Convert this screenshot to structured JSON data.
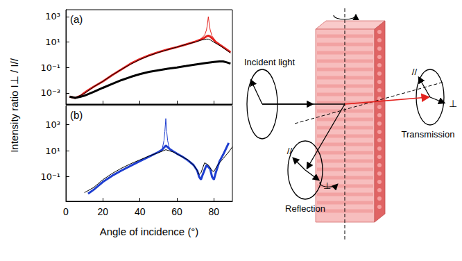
{
  "chart_data": {
    "type": "line",
    "xlabel": "Angle of incidence (°)",
    "ylabel": "Intensity ratio I⊥ / I//",
    "log": "y",
    "grid": false,
    "xlim": [
      0,
      90
    ],
    "xticks": [
      0,
      20,
      40,
      60,
      80
    ],
    "panels": [
      {
        "title": "(a)",
        "tick_labels": "y",
        "ylim": [
          0.00013,
          3500
        ],
        "yticks": [
          {
            "value": 0.001,
            "label": "10⁻³"
          },
          {
            "value": 0.1,
            "label": "10⁻¹"
          },
          {
            "value": 10,
            "label": "10¹"
          },
          {
            "value": 1000,
            "label": "10³"
          }
        ],
        "series": [
          {
            "color": "#e3231f",
            "line_style": "thick",
            "x": [
              2,
              5,
              8,
              10,
              12,
              15,
              20,
              25,
              30,
              35,
              40,
              45,
              50,
              55,
              60,
              65,
              70,
              73,
              75,
              76,
              77,
              78,
              79,
              81,
              84,
              87,
              89
            ],
            "values": [
              0.0005,
              0.0004,
              0.0006,
              0.001,
              0.0016,
              0.003,
              0.008,
              0.025,
              0.07,
              0.2,
              0.45,
              0.9,
              1.6,
              2.6,
              4,
              6.5,
              11,
              16,
              22,
              28,
              32,
              27,
              20,
              10,
              5,
              2.5,
              1.6
            ]
          },
          {
            "color": "#e3231f",
            "line_style": "solid",
            "x": [
              5,
              10,
              15,
              20,
              25,
              30,
              35,
              40,
              45,
              50,
              55,
              60,
              65,
              70,
              73,
              75,
              76,
              76.5,
              77,
              77.5,
              78,
              79,
              81,
              84,
              87,
              89
            ],
            "values": [
              0.0004,
              0.0009,
              0.003,
              0.008,
              0.025,
              0.07,
              0.18,
              0.42,
              0.85,
              1.5,
              2.5,
              4,
              6.5,
              11,
              18,
              35,
              90,
              250,
              1000,
              250,
              90,
              30,
              12,
              5,
              2.4,
              1.5
            ]
          },
          {
            "color": "#000000",
            "line_style": "solid",
            "x": [
              5,
              10,
              15,
              20,
              25,
              30,
              35,
              40,
              45,
              50,
              55,
              60,
              65,
              70,
              73,
              75,
              76,
              77,
              78,
              79,
              81,
              84,
              87,
              89
            ],
            "values": [
              0.0004,
              0.0009,
              0.003,
              0.008,
              0.025,
              0.07,
              0.18,
              0.42,
              0.85,
              1.5,
              2.5,
              4,
              6.5,
              10,
              14,
              16,
              17,
              17,
              15,
              12,
              8,
              4.5,
              2.2,
              1.4
            ]
          },
          {
            "color": "#000000",
            "line_style": "thick",
            "x": [
              2,
              5,
              8,
              10,
              15,
              20,
              25,
              30,
              35,
              40,
              45,
              50,
              55,
              60,
              65,
              70,
              75,
              80,
              83,
              85,
              87,
              89
            ],
            "values": [
              0.0005,
              0.0004,
              0.0005,
              0.0006,
              0.0012,
              0.0025,
              0.005,
              0.01,
              0.018,
              0.03,
              0.045,
              0.06,
              0.08,
              0.1,
              0.13,
              0.17,
              0.22,
              0.27,
              0.3,
              0.3,
              0.25,
              0.2
            ]
          }
        ]
      },
      {
        "title": "(b)",
        "tick_labels": true,
        "ylim": [
          0.0013,
          30000
        ],
        "yticks": [
          {
            "value": 0.1,
            "label": "10⁻¹"
          },
          {
            "value": 10,
            "label": "10¹"
          },
          {
            "value": 1000,
            "label": "10³"
          }
        ],
        "series": [
          {
            "color": "#1f3fd0",
            "line_style": "thick",
            "x": [
              12,
              15,
              20,
              25,
              30,
              35,
              40,
              45,
              50,
              52,
              54,
              56,
              58,
              60,
              63,
              66,
              69,
              71,
              72,
              73,
              74,
              76,
              78,
              79,
              80,
              81,
              83,
              85,
              87,
              88
            ],
            "values": [
              0.005,
              0.01,
              0.04,
              0.12,
              0.3,
              0.7,
              1.6,
              3.5,
              8,
              12,
              25,
              14,
              9,
              6,
              3.5,
              1.8,
              0.8,
              0.3,
              0.1,
              0.06,
              0.15,
              0.8,
              0.4,
              0.1,
              0.06,
              0.2,
              1.5,
              5,
              20,
              40
            ]
          },
          {
            "color": "#1f3fd0",
            "line_style": "solid",
            "x": [
              12,
              15,
              20,
              25,
              30,
              35,
              40,
              45,
              50,
              52,
              53,
              53.5,
              54,
              54.5,
              55,
              56,
              58,
              60,
              63,
              66,
              69,
              71,
              72,
              73,
              74,
              76,
              78,
              79,
              80,
              81,
              83,
              85,
              87,
              88
            ],
            "values": [
              0.005,
              0.01,
              0.04,
              0.12,
              0.3,
              0.7,
              1.6,
              3.5,
              8,
              12,
              60,
              300,
              3000,
              300,
              60,
              14,
              9,
              6,
              3.5,
              1.8,
              0.8,
              0.3,
              0.1,
              0.06,
              0.15,
              0.8,
              0.4,
              0.1,
              0.06,
              0.2,
              1.5,
              5,
              20,
              40
            ]
          },
          {
            "color": "#000000",
            "line_style": "solid",
            "x": [
              10,
              15,
              20,
              25,
              30,
              35,
              40,
              45,
              50,
              54,
              58,
              62,
              66,
              69,
              71,
              72,
              73,
              75,
              77,
              79,
              80,
              82,
              85,
              88,
              90
            ],
            "values": [
              0.006,
              0.015,
              0.06,
              0.18,
              0.45,
              1,
              2,
              4,
              7,
              12,
              8,
              4,
              2,
              0.8,
              0.3,
              0.15,
              0.2,
              1.2,
              0.8,
              0.3,
              0.25,
              0.8,
              2.5,
              8,
              20
            ]
          }
        ]
      }
    ]
  },
  "diagram": {
    "incident": "Incident light",
    "reflection": {
      "label": "Reflection",
      "parallel": "//",
      "perpendicular": "⊥"
    },
    "transmission": {
      "label": "Transmission",
      "parallel": "//",
      "perpendicular": "⊥"
    }
  }
}
